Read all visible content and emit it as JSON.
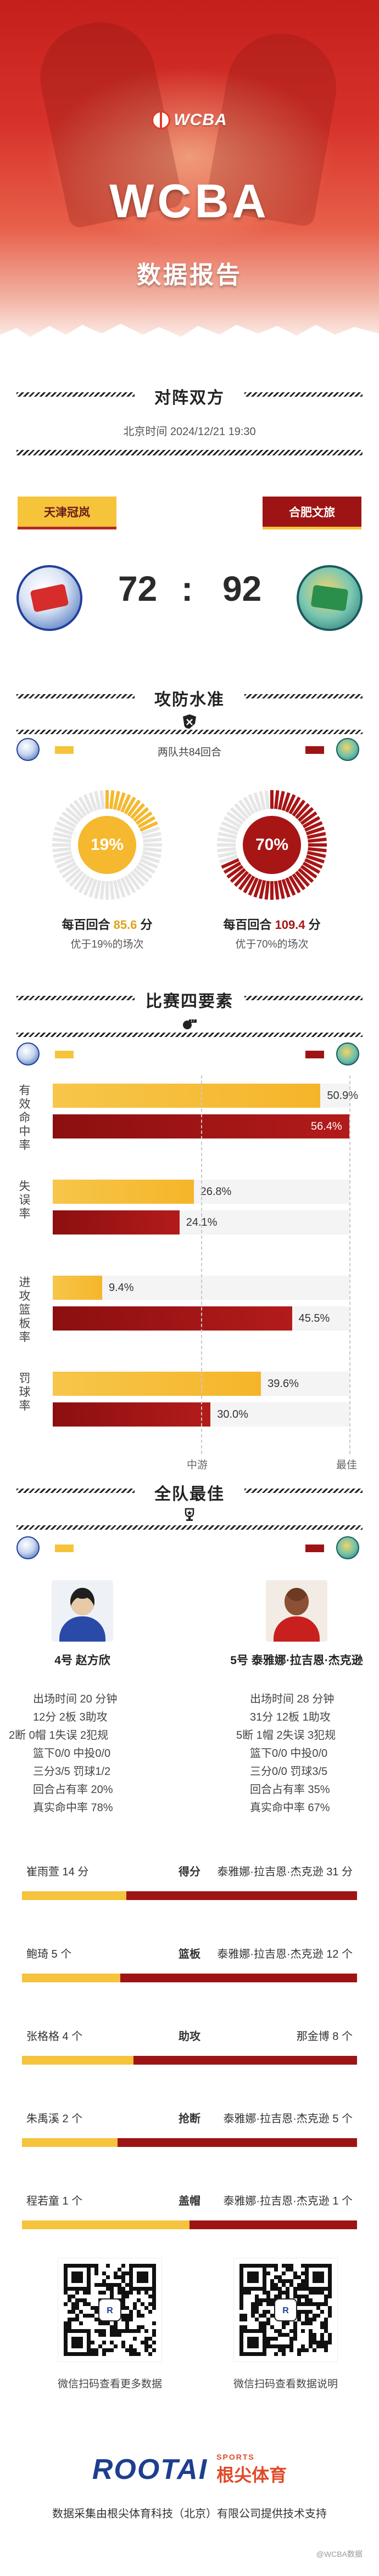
{
  "header": {
    "logo_text": "WCBA",
    "title": "WCBA",
    "subtitle": "数据报告"
  },
  "matchup": {
    "section_title": "对阵双方",
    "date": "北京时间 2024/12/21 19:30",
    "home_team": "天津冠岚",
    "away_team": "合肥文旅",
    "home_score": "72",
    "separator": ":",
    "away_score": "92"
  },
  "efficiency": {
    "section_title": "攻防水准",
    "possessions": "两队共84回合",
    "home": {
      "pct": "19%",
      "pct_value": 19,
      "line_prefix": "每百回合",
      "value": "85.6",
      "unit": "分",
      "sub": "优于19%的场次"
    },
    "away": {
      "pct": "70%",
      "pct_value": 70,
      "line_prefix": "每百回合",
      "value": "109.4",
      "unit": "分",
      "sub": "优于70%的场次"
    }
  },
  "four_factors": {
    "section_title": "比赛四要素",
    "axis_mid": "中游",
    "axis_best": "最佳",
    "factors": [
      {
        "label": "有效命中率",
        "home": 50.9,
        "home_label": "50.9%",
        "away": 56.4,
        "away_label": "56.4%"
      },
      {
        "label": "失误率",
        "home": 26.8,
        "home_label": "26.8%",
        "away": 24.1,
        "away_label": "24.1%"
      },
      {
        "label": "进攻篮板率",
        "home": 9.4,
        "home_label": "9.4%",
        "away": 45.5,
        "away_label": "45.5%"
      },
      {
        "label": "罚球率",
        "home": 39.6,
        "home_label": "39.6%",
        "away": 30.0,
        "away_label": "30.0%"
      }
    ]
  },
  "best": {
    "section_title": "全队最佳",
    "home": {
      "name": "4号 赵方欣",
      "lines": [
        "出场时间 20 分钟",
        "12分  2板  3助攻",
        "2断  0帽  1失误  2犯规",
        "篮下0/0  中投0/0",
        "三分3/5  罚球1/2",
        "回合占有率 20%",
        "真实命中率 78%"
      ]
    },
    "away": {
      "name": "5号 泰雅娜·拉吉恩·杰克逊",
      "lines": [
        "出场时间 28 分钟",
        "31分  12板  1助攻",
        "5断  1帽  2失误  3犯规",
        "篮下0/0  中投0/0",
        "三分0/0  罚球3/5",
        "回合占有率 35%",
        "真实命中率 67%"
      ]
    }
  },
  "leaders": [
    {
      "cat": "得分",
      "home": "崔雨萱 14 分",
      "away": "泰雅娜·拉吉恩·杰克逊 31 分",
      "home_val": 14,
      "away_val": 31
    },
    {
      "cat": "篮板",
      "home": "鲍琦 5 个",
      "away": "泰雅娜·拉吉恩·杰克逊 12 个",
      "home_val": 5,
      "away_val": 12
    },
    {
      "cat": "助攻",
      "home": "张格格 4 个",
      "away": "那金博 8 个",
      "home_val": 4,
      "away_val": 8
    },
    {
      "cat": "抢断",
      "home": "朱禹溪 2 个",
      "away": "泰雅娜·拉吉恩·杰克逊 5 个",
      "home_val": 2,
      "away_val": 5
    },
    {
      "cat": "盖帽",
      "home": "程若童 1 个",
      "away": "泰雅娜·拉吉恩·杰克逊 1 个",
      "home_val": 1,
      "away_val": 1
    }
  ],
  "footer": {
    "qr_left": "微信扫码查看更多数据",
    "qr_right": "微信扫码查看数据说明",
    "brand_main": "ROOTAI",
    "brand_small": "SPORTS",
    "brand_cn": "根尖体育",
    "credit": "数据采集由根尖体育科技（北京）有限公司提供技术支持",
    "watermark": "@WCBA数据"
  },
  "colors": {
    "home": "#f5c43a",
    "away": "#9e1414",
    "header": "#c51f1c"
  }
}
